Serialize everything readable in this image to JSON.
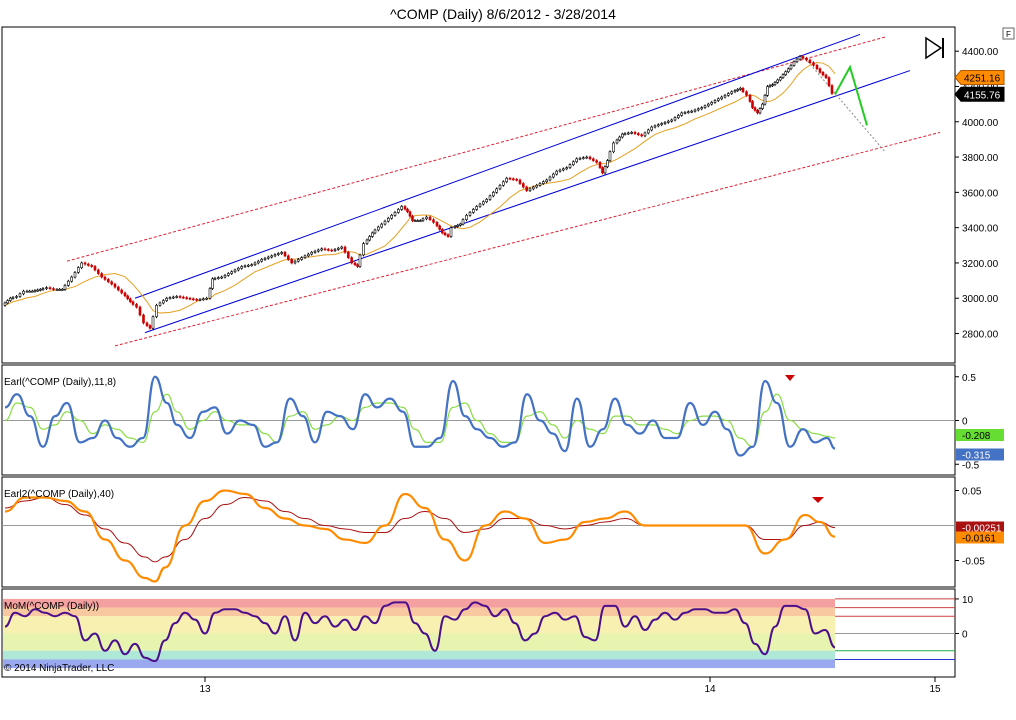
{
  "title": "^COMP (Daily)  8/6/2012 - 3/28/2014",
  "copyright": "© 2014 NinjaTrader, LLC",
  "corner_button_label": "F",
  "colors": {
    "price_up": "#000000",
    "price_down": "#cc0000",
    "ma": "#e8a020",
    "channel": "#0000dd",
    "outer_channel": "#dd2233",
    "forecast": "#22cc22",
    "earl_fast": "#4472c4",
    "earl_slow": "#88dd44",
    "earl2_fast": "#ff8c00",
    "earl2_slow": "#aa1111",
    "mom": "#4b0f8c"
  },
  "chart_data": [
    {
      "type": "line",
      "name": "price",
      "x_ticks": [
        "13",
        "14",
        "15"
      ],
      "ylim": [
        2650,
        4520
      ],
      "y_ticks": [
        "2800.00",
        "3000.00",
        "3200.00",
        "3400.00",
        "3600.00",
        "3800.00",
        "4000.00",
        "4200.00",
        "4400.00"
      ],
      "x": [
        0,
        8,
        15,
        22,
        30,
        38,
        45,
        52,
        60,
        70,
        80,
        90,
        100,
        110,
        120,
        128,
        135,
        142,
        148,
        155,
        165,
        175,
        185,
        195,
        205,
        210,
        220,
        230,
        240,
        250,
        260,
        270,
        280,
        290,
        300,
        310,
        320,
        330,
        340,
        350,
        355,
        362,
        370,
        380,
        390,
        400,
        405,
        410,
        418,
        425,
        432,
        440,
        446,
        450,
        458,
        465,
        475,
        485,
        495,
        505,
        515,
        525,
        535,
        545,
        555,
        565,
        575,
        585,
        595,
        600,
        605,
        612,
        620,
        630,
        640,
        650,
        660,
        670,
        680,
        690,
        700,
        710,
        720,
        730,
        738,
        745,
        750,
        755,
        760,
        765,
        770,
        778,
        786,
        792,
        798,
        805,
        812,
        818,
        824,
        830
      ],
      "close": [
        2960,
        3000,
        3010,
        3040,
        3040,
        3050,
        3060,
        3050,
        3050,
        3120,
        3200,
        3180,
        3120,
        3080,
        3030,
        2980,
        2950,
        2860,
        2830,
        2960,
        3000,
        3010,
        3000,
        2990,
        3000,
        3110,
        3120,
        3150,
        3180,
        3190,
        3220,
        3240,
        3260,
        3200,
        3230,
        3260,
        3280,
        3270,
        3290,
        3200,
        3180,
        3310,
        3370,
        3420,
        3470,
        3520,
        3490,
        3440,
        3440,
        3460,
        3430,
        3370,
        3350,
        3400,
        3420,
        3470,
        3520,
        3560,
        3620,
        3680,
        3670,
        3610,
        3640,
        3670,
        3720,
        3740,
        3790,
        3800,
        3770,
        3710,
        3780,
        3880,
        3930,
        3940,
        3920,
        3970,
        3990,
        4010,
        4050,
        4060,
        4080,
        4110,
        4140,
        4170,
        4190,
        4150,
        4080,
        4050,
        4100,
        4200,
        4210,
        4250,
        4300,
        4340,
        4370,
        4350,
        4320,
        4280,
        4250,
        4160
      ],
      "last_close_label": "4155.76",
      "prior_label": "4251.16",
      "forecast": [
        [
          830,
          4155
        ],
        [
          845,
          4310
        ],
        [
          862,
          3980
        ]
      ]
    },
    {
      "type": "line",
      "name": "Earl(^COMP (Daily),11,8)",
      "ylim": [
        -0.6,
        0.6
      ],
      "y_ticks": [
        "0.5",
        "0",
        "-0.5"
      ],
      "x": [
        0,
        12,
        25,
        38,
        50,
        62,
        75,
        88,
        100,
        112,
        125,
        138,
        150,
        162,
        172,
        185,
        198,
        210,
        222,
        235,
        248,
        260,
        272,
        285,
        298,
        310,
        322,
        335,
        348,
        360,
        372,
        385,
        398,
        410,
        422,
        435,
        448,
        460,
        472,
        485,
        498,
        510,
        522,
        535,
        548,
        560,
        572,
        585,
        598,
        610,
        622,
        635,
        648,
        660,
        672,
        685,
        698,
        710,
        722,
        735,
        748,
        760,
        772,
        785,
        798,
        810,
        822,
        830
      ],
      "fast": [
        0.15,
        0.3,
        0.05,
        -0.3,
        0.05,
        0.2,
        -0.25,
        -0.2,
        0.0,
        -0.2,
        -0.3,
        -0.2,
        0.5,
        0.2,
        -0.05,
        -0.2,
        0.1,
        0.15,
        -0.15,
        0.0,
        -0.05,
        -0.3,
        -0.25,
        0.25,
        0.05,
        -0.25,
        0.1,
        0.05,
        -0.1,
        0.3,
        0.15,
        0.25,
        0.1,
        -0.3,
        -0.3,
        -0.2,
        0.45,
        0.05,
        -0.1,
        -0.2,
        -0.3,
        -0.25,
        0.3,
        0.0,
        -0.15,
        -0.35,
        0.25,
        -0.3,
        -0.1,
        0.25,
        -0.05,
        -0.15,
        0.0,
        -0.2,
        -0.2,
        0.2,
        -0.05,
        0.1,
        -0.1,
        -0.4,
        -0.3,
        0.45,
        0.2,
        -0.3,
        -0.1,
        -0.25,
        -0.2,
        -0.32
      ],
      "slow": [
        0.0,
        0.2,
        0.15,
        -0.1,
        -0.05,
        0.1,
        0.0,
        -0.15,
        -0.05,
        -0.1,
        -0.2,
        -0.25,
        0.1,
        0.3,
        0.1,
        -0.1,
        0.0,
        0.1,
        0.0,
        -0.05,
        -0.05,
        -0.15,
        -0.25,
        0.05,
        0.1,
        -0.1,
        -0.05,
        0.05,
        0.0,
        0.15,
        0.2,
        0.2,
        0.15,
        -0.1,
        -0.25,
        -0.25,
        0.15,
        0.2,
        0.0,
        -0.15,
        -0.25,
        -0.25,
        0.05,
        0.1,
        -0.05,
        -0.2,
        0.0,
        -0.1,
        -0.15,
        0.05,
        0.05,
        -0.05,
        -0.05,
        -0.1,
        -0.15,
        0.0,
        0.05,
        0.05,
        0.0,
        -0.2,
        -0.3,
        0.1,
        0.3,
        0.0,
        -0.1,
        -0.15,
        -0.18,
        -0.2
      ],
      "fast_label": "-0.315",
      "slow_label": "-0.208"
    },
    {
      "type": "line",
      "name": "Earl2(^COMP (Daily),40)",
      "ylim": [
        -0.085,
        0.065
      ],
      "y_ticks": [
        "0.05",
        "-0.05"
      ],
      "x": [
        0,
        20,
        40,
        60,
        80,
        100,
        120,
        140,
        150,
        160,
        180,
        200,
        220,
        240,
        260,
        280,
        300,
        320,
        340,
        360,
        380,
        400,
        420,
        440,
        460,
        480,
        500,
        520,
        540,
        560,
        580,
        600,
        620,
        640,
        660,
        680,
        700,
        720,
        740,
        760,
        780,
        800,
        815,
        830
      ],
      "fast": [
        0.02,
        0.04,
        0.04,
        0.035,
        0.02,
        -0.02,
        -0.05,
        -0.075,
        -0.08,
        -0.06,
        0.0,
        0.035,
        0.05,
        0.045,
        0.025,
        0.01,
        0.0,
        -0.005,
        -0.02,
        -0.025,
        0.0,
        0.045,
        0.025,
        -0.02,
        -0.05,
        0.0,
        0.02,
        0.01,
        -0.025,
        -0.02,
        0.005,
        0.01,
        0.02,
        0.0,
        0.0,
        0.0,
        0.0,
        0.0,
        0.0,
        -0.04,
        -0.02,
        0.015,
        0.005,
        -0.016
      ],
      "slow": [
        0.025,
        0.035,
        0.04,
        0.03,
        0.015,
        -0.005,
        -0.025,
        -0.045,
        -0.052,
        -0.045,
        -0.02,
        0.01,
        0.03,
        0.04,
        0.035,
        0.02,
        0.01,
        0.0,
        -0.005,
        -0.01,
        -0.01,
        0.01,
        0.02,
        0.01,
        -0.01,
        -0.005,
        0.01,
        0.01,
        0.0,
        -0.005,
        0.0,
        0.005,
        0.01,
        0.0,
        0.0,
        0.0,
        0.0,
        0.0,
        0.0,
        -0.02,
        -0.02,
        0.0,
        0.005,
        -0.003
      ],
      "fast_label": "-0.0161",
      "slow_label": "-0.00251"
    },
    {
      "type": "line",
      "name": "MoM(^COMP (Daily))",
      "ylim": [
        -12,
        12
      ],
      "y_ticks": [
        "10",
        "0"
      ],
      "x": [
        0,
        10,
        20,
        30,
        40,
        50,
        60,
        70,
        80,
        90,
        100,
        110,
        120,
        130,
        140,
        150,
        160,
        170,
        180,
        190,
        200,
        210,
        220,
        230,
        240,
        250,
        260,
        270,
        280,
        290,
        300,
        310,
        320,
        330,
        340,
        350,
        360,
        370,
        380,
        390,
        400,
        410,
        420,
        430,
        440,
        450,
        460,
        470,
        480,
        490,
        500,
        510,
        520,
        530,
        540,
        550,
        560,
        570,
        580,
        590,
        600,
        610,
        620,
        630,
        640,
        650,
        660,
        670,
        680,
        690,
        700,
        710,
        720,
        730,
        740,
        750,
        760,
        770,
        780,
        790,
        800,
        810,
        820,
        830
      ],
      "values": [
        2,
        6,
        5,
        7,
        6,
        5,
        6,
        5,
        -2,
        0,
        -5,
        -2,
        -6,
        -3,
        -7,
        -8,
        -2,
        3,
        6,
        4,
        0,
        6,
        7,
        7,
        6,
        5,
        3,
        0,
        5,
        -2,
        6,
        3,
        5,
        2,
        4,
        1,
        5,
        3,
        8,
        9,
        9,
        3,
        0,
        -5,
        5,
        4,
        7,
        9,
        8,
        5,
        7,
        3,
        -2,
        0,
        5,
        6,
        4,
        5,
        -1,
        -2,
        8,
        8,
        2,
        5,
        1,
        4,
        6,
        4,
        6,
        7,
        7,
        6,
        6,
        7,
        3,
        -3,
        -6,
        2,
        8,
        8,
        7,
        0,
        1,
        -4
      ],
      "zones": [
        {
          "from": 7.5,
          "to": 10,
          "color": "#f4a0a0"
        },
        {
          "from": 5,
          "to": 7.5,
          "color": "#f8c8a0"
        },
        {
          "from": 0,
          "to": 5,
          "color": "#f8f0b0"
        },
        {
          "from": -5,
          "to": 0,
          "color": "#e6f4b0"
        },
        {
          "from": -7.5,
          "to": -5,
          "color": "#b0e8d8"
        },
        {
          "from": -10,
          "to": -7.5,
          "color": "#9aa8f0"
        }
      ]
    }
  ]
}
